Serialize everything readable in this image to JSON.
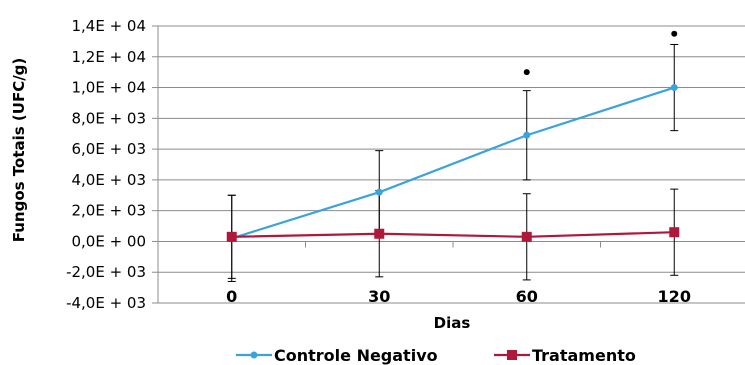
{
  "chart_data": {
    "type": "line",
    "xlabel": "Dias",
    "ylabel": "Fungos Totais (UFC/g)",
    "categories": [
      "0",
      "30",
      "60",
      "120"
    ],
    "ylim": [
      -4000,
      14000
    ],
    "ytick_values": [
      -4000,
      -2000,
      0,
      2000,
      4000,
      6000,
      8000,
      10000,
      12000,
      14000
    ],
    "ytick_labels": [
      "-4,0E + 03",
      "-2,0E + 03",
      "0,0E + 00",
      "2,0E + 03",
      "4,0E + 03",
      "6,0E + 03",
      "8,0E + 03",
      "1,0E + 04",
      "1,2E + 04",
      "1,4E + 04"
    ],
    "grid": true,
    "legend_position": "bottom",
    "series": [
      {
        "name": "Controle Negativo",
        "color": "#3ba3dc",
        "marker": "circle",
        "values": [
          200,
          3200,
          6900,
          10000
        ],
        "error": [
          2800,
          2700,
          2900,
          2800
        ]
      },
      {
        "name": "Tratamento",
        "color": "#b0183a",
        "marker": "square",
        "values": [
          300,
          500,
          300,
          600
        ],
        "error": [
          2700,
          2800,
          2800,
          2800
        ]
      }
    ],
    "annotations": [
      {
        "category": "60",
        "value": 11000,
        "marker": "dot"
      },
      {
        "category": "120",
        "value": 13500,
        "marker": "dot"
      }
    ]
  }
}
